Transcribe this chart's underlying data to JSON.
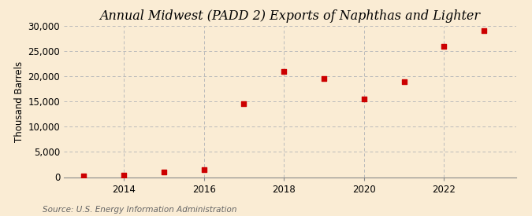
{
  "title": "Annual Midwest (PADD 2) Exports of Naphthas and Lighter",
  "ylabel": "Thousand Barrels",
  "source": "Source: U.S. Energy Information Administration",
  "background_color": "#faecd4",
  "years": [
    2013,
    2014,
    2015,
    2016,
    2017,
    2018,
    2019,
    2020,
    2021,
    2022,
    2023
  ],
  "values": [
    200,
    400,
    1000,
    1500,
    14500,
    21000,
    19500,
    15500,
    19000,
    26000,
    29000
  ],
  "marker_color": "#cc0000",
  "marker": "s",
  "marker_size": 4,
  "xlim": [
    2012.5,
    2023.8
  ],
  "ylim": [
    0,
    30000
  ],
  "yticks": [
    0,
    5000,
    10000,
    15000,
    20000,
    25000,
    30000
  ],
  "xticks": [
    2014,
    2016,
    2018,
    2020,
    2022
  ],
  "grid_color": "#bbbbbb",
  "grid_linestyle": "--",
  "title_fontsize": 11.5,
  "label_fontsize": 8.5,
  "tick_fontsize": 8.5,
  "source_fontsize": 7.5
}
